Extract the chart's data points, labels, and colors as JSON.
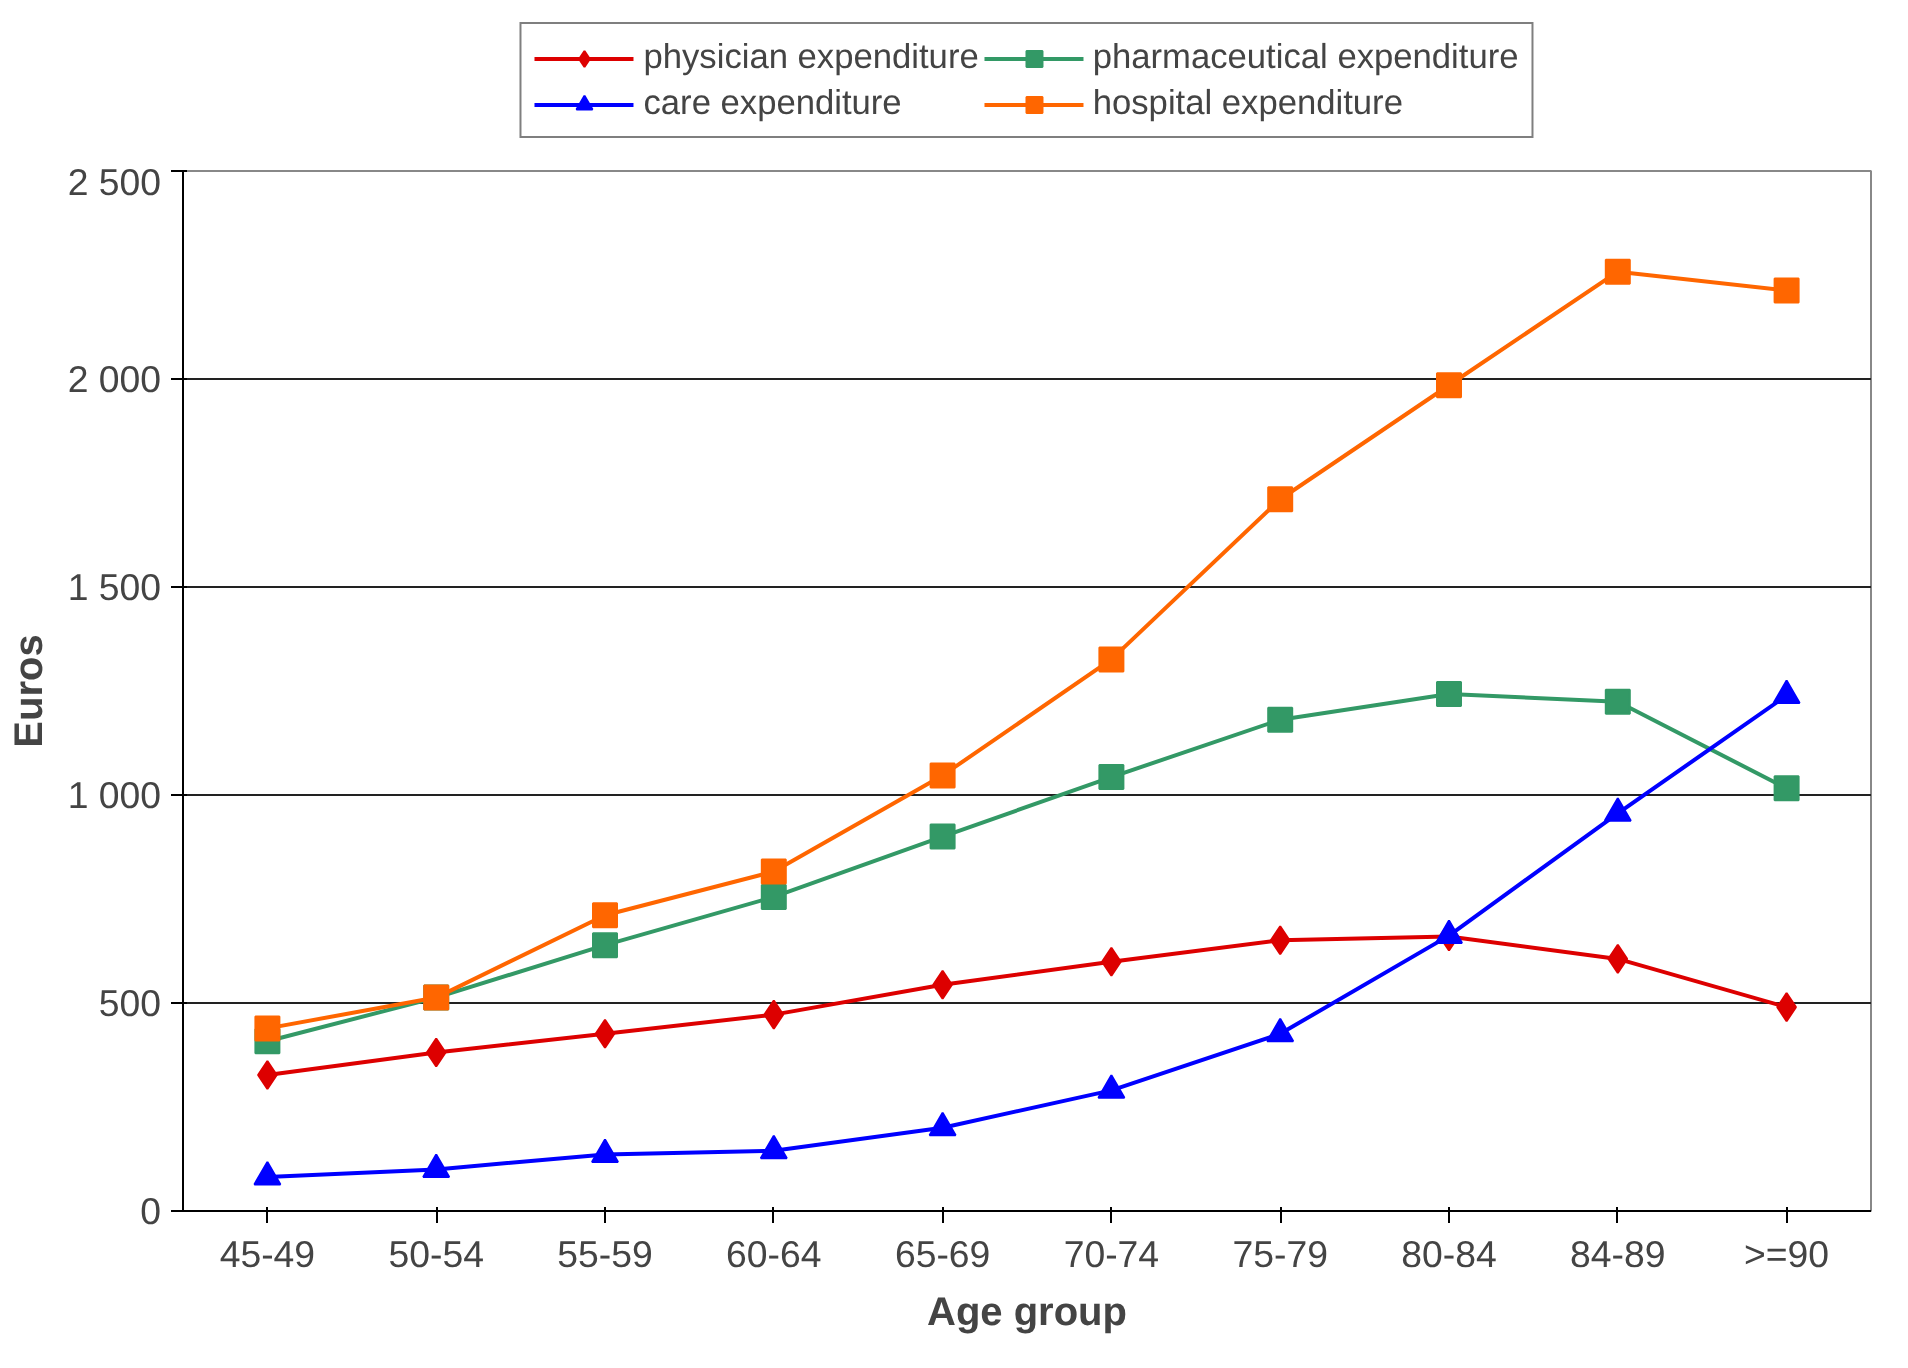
{
  "chart_data": {
    "type": "line",
    "xlabel": "Age group",
    "ylabel": "Euros",
    "categories": [
      "45-49",
      "50-54",
      "55-59",
      "60-64",
      "65-69",
      "70-74",
      "75-79",
      "80-84",
      "84-89",
      ">=90"
    ],
    "series": [
      {
        "name": "physician expenditure",
        "color": "#dd0000",
        "marker": "diamond",
        "values": [
          327,
          381,
          426,
          472,
          544,
          599,
          651,
          660,
          606,
          490
        ]
      },
      {
        "name": "pharmaceutical expenditure",
        "color": "#339966",
        "marker": "square",
        "values": [
          408,
          513,
          639,
          755,
          900,
          1043,
          1181,
          1243,
          1224,
          1016
        ]
      },
      {
        "name": "care expenditure",
        "color": "#0000ff",
        "marker": "triangle",
        "values": [
          82,
          100,
          136,
          145,
          200,
          290,
          426,
          662,
          956,
          1239
        ]
      },
      {
        "name": "hospital expenditure",
        "color": "#ff6600",
        "marker": "square",
        "values": [
          439,
          513,
          711,
          816,
          1047,
          1326,
          1711,
          1985,
          2258,
          2213
        ]
      }
    ],
    "ylim": [
      0,
      2500
    ],
    "yticks": [
      0,
      {
        "value": 500,
        "label": "500"
      },
      {
        "value": 1000,
        "label": "1 000"
      },
      {
        "value": 1500,
        "label": "1 500"
      },
      {
        "value": 2000,
        "label": "2 000"
      },
      {
        "value": 2500,
        "label": "2 500"
      }
    ],
    "grid": "y",
    "legend": "top",
    "line_style": "solid"
  }
}
